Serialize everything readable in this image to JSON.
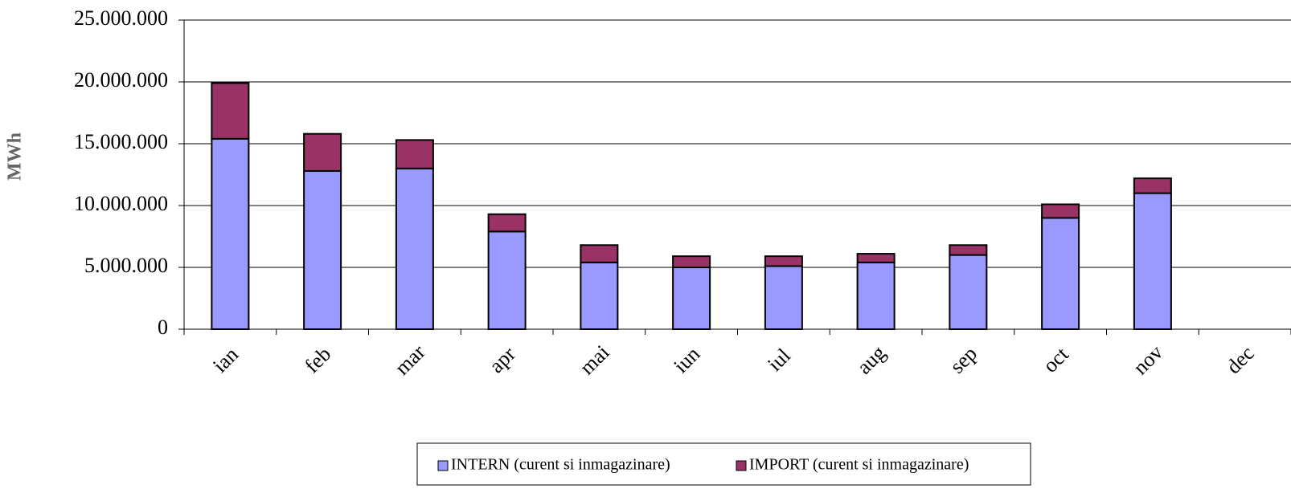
{
  "chart_data": {
    "type": "bar",
    "stacked": true,
    "y_label": "MWh",
    "categories": [
      "ian",
      "feb",
      "mar",
      "apr",
      "mai",
      "iun",
      "iul",
      "aug",
      "sep",
      "oct",
      "nov",
      "dec"
    ],
    "series": [
      {
        "name": "INTERN (curent si inmagazinare)",
        "color": "#9999ff",
        "values": [
          15400000,
          12800000,
          13000000,
          7900000,
          5400000,
          5000000,
          5100000,
          5400000,
          6000000,
          9000000,
          11000000,
          null
        ]
      },
      {
        "name": "IMPORT (curent si inmagazinare)",
        "color": "#993366",
        "values": [
          4500000,
          3000000,
          2300000,
          1400000,
          1400000,
          900000,
          800000,
          700000,
          800000,
          1100000,
          1200000,
          null
        ]
      }
    ],
    "ylim": [
      0,
      25000000
    ],
    "yticks": [
      0,
      {
        "value": 5000000,
        "label": "5.000.000"
      },
      {
        "value": 10000000,
        "label": "10.000.000"
      },
      {
        "value": 15000000,
        "label": "15.000.000"
      },
      {
        "value": 20000000,
        "label": "20.000.000"
      },
      {
        "value": 25000000,
        "label": "25.000.000"
      }
    ],
    "grid": true,
    "legend": "bottom"
  }
}
